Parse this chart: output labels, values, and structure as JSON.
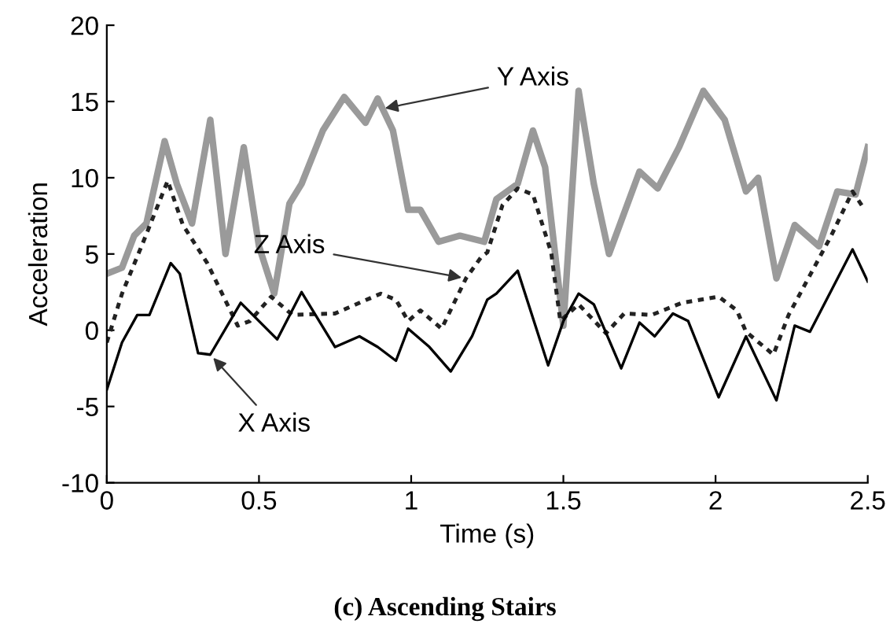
{
  "chart_data": {
    "type": "line",
    "title": "(c) Ascending Stairs",
    "xlabel": "Time (s)",
    "ylabel": "Acceleration",
    "xlim": [
      0,
      2.5
    ],
    "ylim": [
      -10,
      20
    ],
    "xticks": [
      0,
      0.5,
      1,
      1.5,
      2,
      2.5
    ],
    "yticks": [
      -10,
      -5,
      0,
      5,
      10,
      15,
      20
    ],
    "grid": false,
    "legend": false,
    "series": [
      {
        "color": "#9a9a9a",
        "line_style": "solid",
        "x": [
          0.0,
          0.05,
          0.09,
          0.13,
          0.19,
          0.23,
          0.28,
          0.34,
          0.39,
          0.45,
          0.5,
          0.55,
          0.6,
          0.64,
          0.71,
          0.78,
          0.85,
          0.89,
          0.94,
          0.99,
          1.03,
          1.09,
          1.16,
          1.24,
          1.28,
          1.35,
          1.4,
          1.44,
          1.5,
          1.55,
          1.6,
          1.65,
          1.75,
          1.81,
          1.88,
          1.96,
          2.03,
          2.1,
          2.14,
          2.2,
          2.26,
          2.34,
          2.4,
          2.46,
          2.5
        ],
        "values": [
          3.7,
          4.1,
          6.2,
          7.0,
          12.4,
          9.6,
          7.0,
          13.8,
          5.0,
          12.0,
          5.5,
          2.4,
          8.3,
          9.6,
          13.1,
          15.3,
          13.6,
          15.2,
          13.1,
          7.9,
          7.9,
          5.8,
          6.2,
          5.8,
          8.6,
          9.6,
          13.1,
          10.7,
          0.3,
          15.7,
          9.6,
          5.0,
          10.4,
          9.3,
          12.0,
          15.7,
          13.8,
          9.1,
          10.0,
          3.4,
          6.9,
          5.5,
          9.1,
          8.9,
          12.0
        ]
      },
      {
        "color": "#222222",
        "line_style": "dotted",
        "x": [
          0.0,
          0.05,
          0.12,
          0.2,
          0.25,
          0.33,
          0.43,
          0.47,
          0.54,
          0.61,
          0.75,
          0.9,
          0.95,
          0.99,
          1.03,
          1.1,
          1.18,
          1.23,
          1.25,
          1.3,
          1.35,
          1.4,
          1.46,
          1.49,
          1.55,
          1.64,
          1.7,
          1.79,
          1.89,
          2.01,
          2.07,
          2.1,
          2.19,
          2.24,
          2.31,
          2.38,
          2.45,
          2.49
        ],
        "values": [
          -0.8,
          2.4,
          5.8,
          9.8,
          6.9,
          4.4,
          0.3,
          0.6,
          2.2,
          1.0,
          1.1,
          2.4,
          2.0,
          0.6,
          1.3,
          0.1,
          3.4,
          4.8,
          5.1,
          8.2,
          9.3,
          8.9,
          5.1,
          0.6,
          1.7,
          -0.2,
          1.1,
          1.0,
          1.8,
          2.2,
          1.3,
          -0.1,
          -1.6,
          1.0,
          3.6,
          6.2,
          9.1,
          7.9
        ]
      },
      {
        "color": "#000000",
        "line_style": "solid",
        "x": [
          0.0,
          0.05,
          0.1,
          0.14,
          0.21,
          0.24,
          0.3,
          0.34,
          0.44,
          0.56,
          0.64,
          0.75,
          0.83,
          0.89,
          0.95,
          0.99,
          1.06,
          1.13,
          1.2,
          1.25,
          1.28,
          1.35,
          1.45,
          1.5,
          1.55,
          1.6,
          1.69,
          1.75,
          1.8,
          1.86,
          1.91,
          2.01,
          2.1,
          2.2,
          2.26,
          2.31,
          2.45,
          2.5
        ],
        "values": [
          -3.9,
          -0.8,
          1.0,
          1.0,
          4.4,
          3.7,
          -1.5,
          -1.6,
          1.8,
          -0.6,
          2.5,
          -1.1,
          -0.4,
          -1.1,
          -2.0,
          0.1,
          -1.1,
          -2.7,
          -0.4,
          2.0,
          2.4,
          3.9,
          -2.3,
          0.6,
          2.4,
          1.7,
          -2.5,
          0.5,
          -0.4,
          1.1,
          0.6,
          -4.4,
          -0.4,
          -4.6,
          0.3,
          -0.1,
          5.3,
          3.2
        ]
      }
    ],
    "annotations": [
      {
        "text": "Y Axis",
        "x": 0.9,
        "y": 14.5
      },
      {
        "text": "Z Axis",
        "x": 1.18,
        "y": 3.4
      },
      {
        "text": "X Axis",
        "x": 0.34,
        "y": -1.6
      }
    ]
  }
}
